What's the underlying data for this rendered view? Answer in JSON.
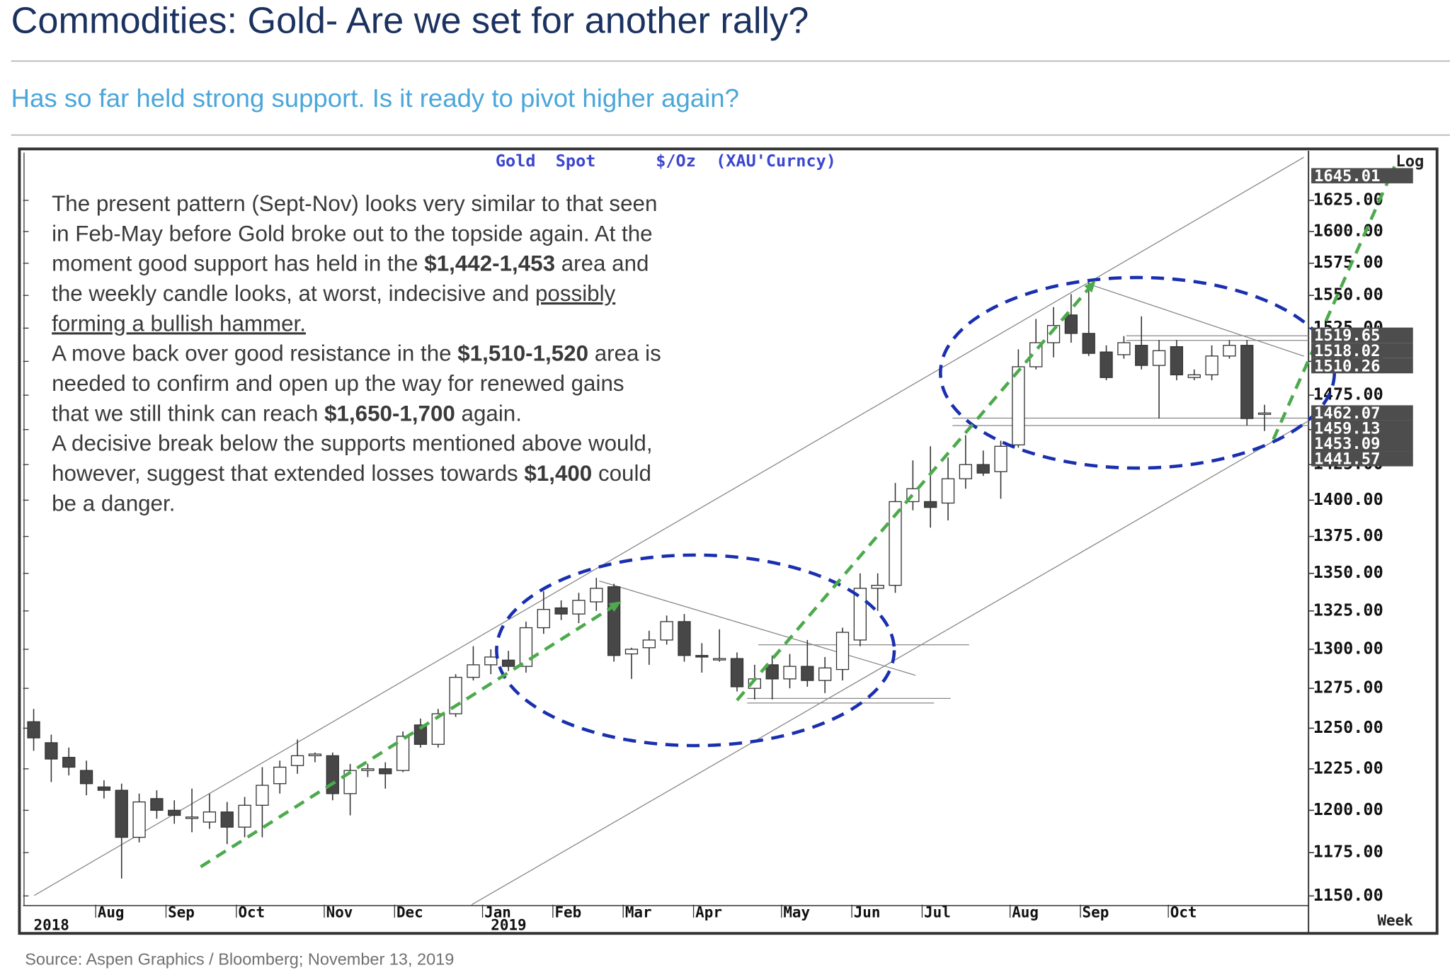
{
  "header": {
    "title": "Commodities: Gold- Are we set for another rally?",
    "subtitle": "Has so far held strong support. Is it ready to pivot higher again?"
  },
  "footer": {
    "source": "Source: Aspen Graphics / Bloomberg; November 13, 2019"
  },
  "chart_data": {
    "type": "candlestick",
    "title": "Gold  Spot      $/Oz  (XAU'Curncy)",
    "scale_label": "Log",
    "period_label": "Week",
    "log_scale": true,
    "up_color": "#ffffff",
    "down_color": "#474747",
    "ylim": [
      1145,
      1664
    ],
    "yticks": [
      {
        "value": 1150,
        "label": "1150.00"
      },
      {
        "value": 1175,
        "label": "1175.00"
      },
      {
        "value": 1200,
        "label": "1200.00"
      },
      {
        "value": 1225,
        "label": "1225.00"
      },
      {
        "value": 1250,
        "label": "1250.00"
      },
      {
        "value": 1275,
        "label": "1275.00"
      },
      {
        "value": 1300,
        "label": "1300.00"
      },
      {
        "value": 1325,
        "label": "1325.00"
      },
      {
        "value": 1350,
        "label": "1350.00"
      },
      {
        "value": 1375,
        "label": "1375.00"
      },
      {
        "value": 1400,
        "label": "1400.00"
      },
      {
        "value": 1425,
        "label": "1425.00"
      },
      {
        "value": 1450,
        "label": "1450.00"
      },
      {
        "value": 1475,
        "label": "1475.00"
      },
      {
        "value": 1500,
        "label": "1500.00"
      },
      {
        "value": 1525,
        "label": "1525.00"
      },
      {
        "value": 1550,
        "label": "1550.00"
      },
      {
        "value": 1575,
        "label": "1575.00"
      },
      {
        "value": 1600,
        "label": "1600.00"
      },
      {
        "value": 1625,
        "label": "1625.00"
      }
    ],
    "price_tags": [
      1645.01,
      1519.65,
      1518.02,
      1510.26,
      1462.07,
      1459.13,
      1453.09,
      1441.57
    ],
    "xlim": [
      -0.6,
      72.5
    ],
    "xticks": [
      {
        "value": 4,
        "label": "Aug"
      },
      {
        "value": 8,
        "label": "Sep"
      },
      {
        "value": 12,
        "label": "Oct"
      },
      {
        "value": 17,
        "label": "Nov"
      },
      {
        "value": 21,
        "label": "Dec"
      },
      {
        "value": 26,
        "label": "Jan"
      },
      {
        "value": 30,
        "label": "Feb"
      },
      {
        "value": 34,
        "label": "Mar"
      },
      {
        "value": 38,
        "label": "Apr"
      },
      {
        "value": 43,
        "label": "May"
      },
      {
        "value": 47,
        "label": "Jun"
      },
      {
        "value": 51,
        "label": "Jul"
      },
      {
        "value": 56,
        "label": "Aug"
      },
      {
        "value": 60,
        "label": "Sep"
      },
      {
        "value": 65,
        "label": "Oct"
      }
    ],
    "year_ticks": [
      {
        "value": 0,
        "label": "2018"
      },
      {
        "value": 26,
        "label": "2019"
      }
    ],
    "open": [
      1254,
      1241,
      1232,
      1224,
      1214,
      1212,
      1184,
      1207,
      1200,
      1196,
      1193,
      1199,
      1190,
      1203,
      1216,
      1227,
      1233,
      1233,
      1210,
      1224,
      1225,
      1224,
      1252,
      1240,
      1259,
      1282,
      1290,
      1293,
      1289,
      1314,
      1327,
      1323,
      1331,
      1341,
      1297,
      1301,
      1306,
      1318,
      1296,
      1294,
      1294,
      1275,
      1290,
      1281,
      1289,
      1280,
      1287,
      1306,
      1340,
      1342,
      1399,
      1399,
      1398,
      1415,
      1425,
      1420,
      1439,
      1496,
      1514,
      1535,
      1521,
      1507,
      1505,
      1512,
      1497,
      1511,
      1488,
      1490,
      1504,
      1512,
      1462
    ],
    "high": [
      1262,
      1246,
      1238,
      1230,
      1218,
      1216,
      1210,
      1212,
      1206,
      1213,
      1210,
      1205,
      1208,
      1226,
      1230,
      1243,
      1235,
      1235,
      1228,
      1228,
      1229,
      1248,
      1256,
      1262,
      1284,
      1302,
      1300,
      1299,
      1318,
      1338,
      1332,
      1337,
      1347,
      1343,
      1301,
      1312,
      1322,
      1323,
      1304,
      1313,
      1298,
      1290,
      1296,
      1297,
      1306,
      1295,
      1314,
      1350,
      1350,
      1412,
      1428,
      1438,
      1430,
      1446,
      1435,
      1442,
      1509,
      1532,
      1541,
      1551,
      1560,
      1512,
      1519,
      1534,
      1516,
      1516,
      1494,
      1512,
      1516,
      1516,
      1468
    ],
    "low": [
      1236,
      1217,
      1221,
      1209,
      1207,
      1160,
      1181,
      1195,
      1192,
      1187,
      1189,
      1180,
      1184,
      1184,
      1210,
      1222,
      1229,
      1206,
      1197,
      1220,
      1213,
      1223,
      1238,
      1238,
      1257,
      1280,
      1284,
      1286,
      1285,
      1310,
      1319,
      1317,
      1325,
      1292,
      1281,
      1290,
      1303,
      1292,
      1285,
      1292,
      1273,
      1268,
      1268,
      1275,
      1276,
      1272,
      1280,
      1302,
      1325,
      1337,
      1393,
      1381,
      1386,
      1408,
      1417,
      1401,
      1437,
      1494,
      1503,
      1514,
      1504,
      1486,
      1502,
      1494,
      1458,
      1486,
      1486,
      1486,
      1502,
      1453,
      1449
    ],
    "close": [
      1244,
      1231,
      1226,
      1216,
      1212,
      1184,
      1205,
      1200,
      1197,
      1196,
      1199,
      1190,
      1203,
      1215,
      1226,
      1233,
      1234,
      1210,
      1224,
      1225,
      1222,
      1245,
      1240,
      1259,
      1282,
      1290,
      1295,
      1289,
      1314,
      1326,
      1323,
      1332,
      1340,
      1296,
      1300,
      1306,
      1318,
      1296,
      1295,
      1294,
      1276,
      1281,
      1281,
      1289,
      1280,
      1288,
      1311,
      1340,
      1342,
      1399,
      1408,
      1395,
      1415,
      1425,
      1419,
      1438,
      1496,
      1514,
      1527,
      1521,
      1506,
      1488,
      1514,
      1497,
      1508,
      1490,
      1490,
      1504,
      1512,
      1458,
      1462
    ],
    "annotation": [
      [
        "The present pattern (Sept-Nov) looks very similar to that seen"
      ],
      [
        "in Feb-May before Gold broke out to the topside again. At the"
      ],
      [
        "moment good support has held in the ",
        {
          "text": "$1,442-1,453",
          "style": "bold"
        },
        " area and"
      ],
      [
        "the weekly candle looks, at worst, indecisive and ",
        {
          "text": "possibly",
          "style": "underline"
        }
      ],
      [
        {
          "text": "forming a bullish hammer.",
          "style": "underline"
        }
      ],
      [
        "A move back over good resistance in the ",
        {
          "text": "$1,510-1,520",
          "style": "bold"
        },
        " area is"
      ],
      [
        "needed to confirm and open up the way for renewed gains"
      ],
      [
        "that we still think can reach ",
        {
          "text": "$1,650-1,700",
          "style": "bold"
        },
        " again."
      ],
      [
        "A decisive break below the supports mentioned above would,"
      ],
      [
        "however, suggest that extended losses towards ",
        {
          "text": "$1,400",
          "style": "bold"
        },
        " could"
      ],
      [
        "be a danger."
      ]
    ]
  }
}
